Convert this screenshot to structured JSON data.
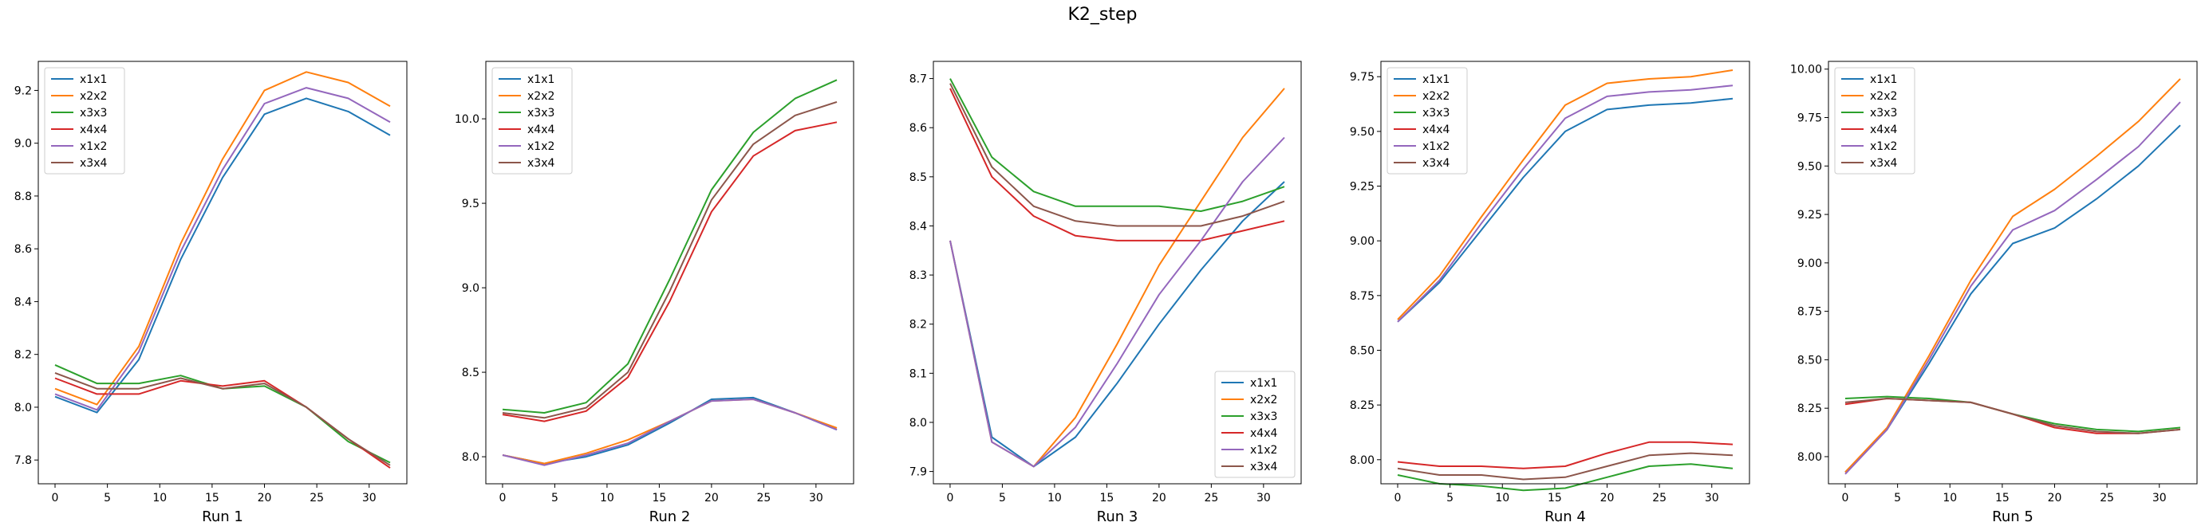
{
  "figure": {
    "title": "K2_step"
  },
  "series_names": [
    "x1x1",
    "x2x2",
    "x3x3",
    "x4x4",
    "x1x2",
    "x3x4"
  ],
  "series_colors": [
    "#1f77b4",
    "#ff7f0e",
    "#2ca02c",
    "#d62728",
    "#9467bd",
    "#8c564b"
  ],
  "chart_data": [
    {
      "type": "line",
      "xlabel": "Run 1",
      "xlim": [
        -1.6,
        33.6
      ],
      "ylim": [
        7.71,
        9.31
      ],
      "xticks": [
        0,
        5,
        10,
        15,
        20,
        25,
        30
      ],
      "yticks": [
        7.8,
        8.0,
        8.2,
        8.4,
        8.6,
        8.8,
        9.0,
        9.2
      ],
      "ytick_labels": [
        "7.8",
        "8.0",
        "8.2",
        "8.4",
        "8.6",
        "8.8",
        "9.0",
        "9.2"
      ],
      "legend": "upper-left",
      "x": [
        0,
        4,
        8,
        12,
        16,
        20,
        24,
        28,
        32
      ],
      "series": [
        {
          "name": "x1x1",
          "values": [
            8.04,
            7.98,
            8.18,
            8.56,
            8.87,
            9.11,
            9.17,
            9.12,
            9.03
          ]
        },
        {
          "name": "x2x2",
          "values": [
            8.07,
            8.01,
            8.23,
            8.62,
            8.94,
            9.2,
            9.27,
            9.23,
            9.14
          ]
        },
        {
          "name": "x3x3",
          "values": [
            8.16,
            8.09,
            8.09,
            8.12,
            8.07,
            8.08,
            8.0,
            7.87,
            7.79
          ]
        },
        {
          "name": "x4x4",
          "values": [
            8.11,
            8.05,
            8.05,
            8.1,
            8.08,
            8.1,
            8.0,
            7.88,
            7.77
          ]
        },
        {
          "name": "x1x2",
          "values": [
            8.05,
            7.99,
            8.21,
            8.59,
            8.9,
            9.15,
            9.21,
            9.17,
            9.08
          ]
        },
        {
          "name": "x3x4",
          "values": [
            8.13,
            8.07,
            8.07,
            8.11,
            8.07,
            8.09,
            8.0,
            7.88,
            7.78
          ]
        }
      ]
    },
    {
      "type": "line",
      "xlabel": "Run 2",
      "xlim": [
        -1.6,
        33.6
      ],
      "ylim": [
        7.84,
        10.34
      ],
      "xticks": [
        0,
        5,
        10,
        15,
        20,
        25,
        30
      ],
      "yticks": [
        8.0,
        8.5,
        9.0,
        9.5,
        10.0
      ],
      "ytick_labels": [
        "8.0",
        "8.5",
        "9.0",
        "9.5",
        "10.0"
      ],
      "legend": "upper-left",
      "x": [
        0,
        4,
        8,
        12,
        16,
        20,
        24,
        28,
        32
      ],
      "series": [
        {
          "name": "x1x1",
          "values": [
            8.01,
            7.96,
            8.0,
            8.07,
            8.2,
            8.34,
            8.35,
            8.26,
            8.16
          ]
        },
        {
          "name": "x2x2",
          "values": [
            8.01,
            7.96,
            8.02,
            8.1,
            8.21,
            8.33,
            8.34,
            8.26,
            8.17
          ]
        },
        {
          "name": "x3x3",
          "values": [
            8.28,
            8.26,
            8.32,
            8.55,
            9.05,
            9.58,
            9.92,
            10.12,
            10.23
          ]
        },
        {
          "name": "x4x4",
          "values": [
            8.25,
            8.21,
            8.27,
            8.47,
            8.92,
            9.45,
            9.78,
            9.93,
            9.98
          ]
        },
        {
          "name": "x1x2",
          "values": [
            8.01,
            7.95,
            8.01,
            8.08,
            8.21,
            8.33,
            8.34,
            8.26,
            8.16
          ]
        },
        {
          "name": "x3x4",
          "values": [
            8.26,
            8.23,
            8.29,
            8.5,
            8.98,
            9.52,
            9.85,
            10.02,
            10.1
          ]
        }
      ]
    },
    {
      "type": "line",
      "xlabel": "Run 3",
      "xlim": [
        -1.6,
        33.6
      ],
      "ylim": [
        7.875,
        8.735
      ],
      "xticks": [
        0,
        5,
        10,
        15,
        20,
        25,
        30
      ],
      "yticks": [
        7.9,
        8.0,
        8.1,
        8.2,
        8.3,
        8.4,
        8.5,
        8.6,
        8.7
      ],
      "ytick_labels": [
        "7.9",
        "8.0",
        "8.1",
        "8.2",
        "8.3",
        "8.4",
        "8.5",
        "8.6",
        "8.7"
      ],
      "legend": "lower-right",
      "x": [
        0,
        4,
        8,
        12,
        16,
        20,
        24,
        28,
        32
      ],
      "series": [
        {
          "name": "x1x1",
          "values": [
            8.37,
            7.97,
            7.91,
            7.97,
            8.08,
            8.2,
            8.31,
            8.41,
            8.49
          ]
        },
        {
          "name": "x2x2",
          "values": [
            8.37,
            7.96,
            7.91,
            8.01,
            8.16,
            8.32,
            8.45,
            8.58,
            8.68
          ]
        },
        {
          "name": "x3x3",
          "values": [
            8.7,
            8.54,
            8.47,
            8.44,
            8.44,
            8.44,
            8.43,
            8.45,
            8.48
          ]
        },
        {
          "name": "x4x4",
          "values": [
            8.68,
            8.5,
            8.42,
            8.38,
            8.37,
            8.37,
            8.37,
            8.39,
            8.41
          ]
        },
        {
          "name": "x1x2",
          "values": [
            8.37,
            7.96,
            7.91,
            7.99,
            8.12,
            8.26,
            8.37,
            8.49,
            8.58
          ]
        },
        {
          "name": "x3x4",
          "values": [
            8.69,
            8.52,
            8.44,
            8.41,
            8.4,
            8.4,
            8.4,
            8.42,
            8.45
          ]
        }
      ]
    },
    {
      "type": "line",
      "xlabel": "Run 4",
      "xlim": [
        -1.6,
        33.6
      ],
      "ylim": [
        7.89,
        9.82
      ],
      "xticks": [
        0,
        5,
        10,
        15,
        20,
        25,
        30
      ],
      "yticks": [
        8.0,
        8.25,
        8.5,
        8.75,
        9.0,
        9.25,
        9.5,
        9.75
      ],
      "ytick_labels": [
        "8.00",
        "8.25",
        "8.50",
        "8.75",
        "9.00",
        "9.25",
        "9.50",
        "9.75"
      ],
      "legend": "upper-left",
      "x": [
        0,
        4,
        8,
        12,
        16,
        20,
        24,
        28,
        32
      ],
      "series": [
        {
          "name": "x1x1",
          "values": [
            8.63,
            8.81,
            9.05,
            9.29,
            9.5,
            9.6,
            9.62,
            9.63,
            9.65
          ]
        },
        {
          "name": "x2x2",
          "values": [
            8.64,
            8.84,
            9.11,
            9.37,
            9.62,
            9.72,
            9.74,
            9.75,
            9.78
          ]
        },
        {
          "name": "x3x3",
          "values": [
            7.93,
            7.89,
            7.88,
            7.86,
            7.87,
            7.92,
            7.97,
            7.98,
            7.96
          ]
        },
        {
          "name": "x4x4",
          "values": [
            7.99,
            7.97,
            7.97,
            7.96,
            7.97,
            8.03,
            8.08,
            8.08,
            8.07
          ]
        },
        {
          "name": "x1x2",
          "values": [
            8.63,
            8.82,
            9.08,
            9.33,
            9.56,
            9.66,
            9.68,
            9.69,
            9.71
          ]
        },
        {
          "name": "x3x4",
          "values": [
            7.96,
            7.93,
            7.93,
            7.91,
            7.92,
            7.97,
            8.02,
            8.03,
            8.02
          ]
        }
      ]
    },
    {
      "type": "line",
      "xlabel": "Run 5",
      "xlim": [
        -1.6,
        33.6
      ],
      "ylim": [
        7.86,
        10.04
      ],
      "xticks": [
        0,
        5,
        10,
        15,
        20,
        25,
        30
      ],
      "yticks": [
        8.0,
        8.25,
        8.5,
        8.75,
        9.0,
        9.25,
        9.5,
        9.75,
        10.0
      ],
      "ytick_labels": [
        "8.00",
        "8.25",
        "8.50",
        "8.75",
        "9.00",
        "9.25",
        "9.50",
        "9.75",
        "10.00"
      ],
      "legend": "upper-left",
      "x": [
        0,
        4,
        8,
        12,
        16,
        20,
        24,
        28,
        32
      ],
      "series": [
        {
          "name": "x1x1",
          "values": [
            7.92,
            8.14,
            8.48,
            8.84,
            9.1,
            9.18,
            9.33,
            9.5,
            9.71
          ]
        },
        {
          "name": "x2x2",
          "values": [
            7.92,
            8.15,
            8.52,
            8.91,
            9.24,
            9.38,
            9.55,
            9.73,
            9.95
          ]
        },
        {
          "name": "x3x3",
          "values": [
            8.3,
            8.31,
            8.3,
            8.28,
            8.22,
            8.17,
            8.14,
            8.13,
            8.15
          ]
        },
        {
          "name": "x4x4",
          "values": [
            8.27,
            8.3,
            8.29,
            8.28,
            8.22,
            8.15,
            8.12,
            8.12,
            8.14
          ]
        },
        {
          "name": "x1x2",
          "values": [
            7.91,
            8.14,
            8.5,
            8.88,
            9.17,
            9.27,
            9.43,
            9.6,
            9.83
          ]
        },
        {
          "name": "x3x4",
          "values": [
            8.28,
            8.3,
            8.29,
            8.28,
            8.22,
            8.16,
            8.13,
            8.12,
            8.14
          ]
        }
      ]
    }
  ]
}
